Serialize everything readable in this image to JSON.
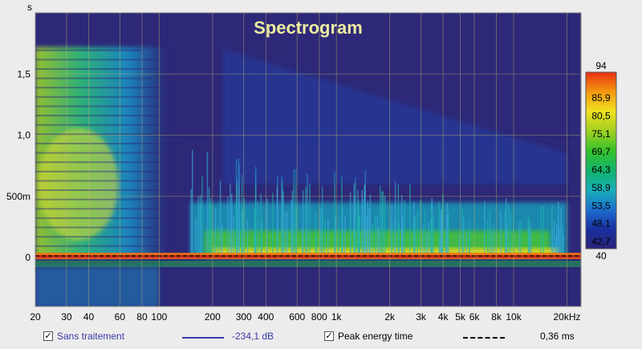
{
  "chart_data": {
    "type": "heatmap",
    "title": "Spectrogram",
    "y_unit_label": "s",
    "x_ticks": [
      {
        "v": 20,
        "label": "20"
      },
      {
        "v": 30,
        "label": "30"
      },
      {
        "v": 40,
        "label": "40"
      },
      {
        "v": 60,
        "label": "60"
      },
      {
        "v": 80,
        "label": "80"
      },
      {
        "v": 100,
        "label": "100"
      },
      {
        "v": 200,
        "label": "200"
      },
      {
        "v": 300,
        "label": "300"
      },
      {
        "v": 400,
        "label": "400"
      },
      {
        "v": 600,
        "label": "600"
      },
      {
        "v": 800,
        "label": "800"
      },
      {
        "v": 1000,
        "label": "1k"
      },
      {
        "v": 2000,
        "label": "2k"
      },
      {
        "v": 3000,
        "label": "3k"
      },
      {
        "v": 4000,
        "label": "4k"
      },
      {
        "v": 5000,
        "label": "5k"
      },
      {
        "v": 6000,
        "label": "6k"
      },
      {
        "v": 8000,
        "label": "8k"
      },
      {
        "v": 10000,
        "label": "10k"
      },
      {
        "v": 20000,
        "label": "20kHz"
      }
    ],
    "xlim": [
      20,
      24000
    ],
    "x_scale": "log",
    "y_ticks": [
      {
        "v": 0,
        "label": "0"
      },
      {
        "v": 0.5,
        "label": "500m"
      },
      {
        "v": 1.0,
        "label": "1,0"
      },
      {
        "v": 1.5,
        "label": "1,5"
      }
    ],
    "ylim": [
      -0.4,
      2.0
    ],
    "colorbar": {
      "min": 40,
      "max": 94,
      "min_label": "40",
      "max_label": "94",
      "labels": [
        "85,9",
        "80,5",
        "75,1",
        "69,7",
        "64,3",
        "58,9",
        "53,5",
        "48,1",
        "42,7"
      ],
      "colors": [
        "#2a237a",
        "#1a2fa0",
        "#1e6fd0",
        "#18b0b8",
        "#12b36a",
        "#36c22a",
        "#a0d020",
        "#f0e020",
        "#f59a10",
        "#e83010"
      ]
    },
    "background_color": "#2d2878",
    "grid": true
  },
  "legend": {
    "trace1_label": "Sans traitement",
    "trace1_value": "-234,1 dB",
    "trace2_label": "Peak energy time",
    "trace2_value": "0,36 ms",
    "check_glyph": "✓"
  }
}
